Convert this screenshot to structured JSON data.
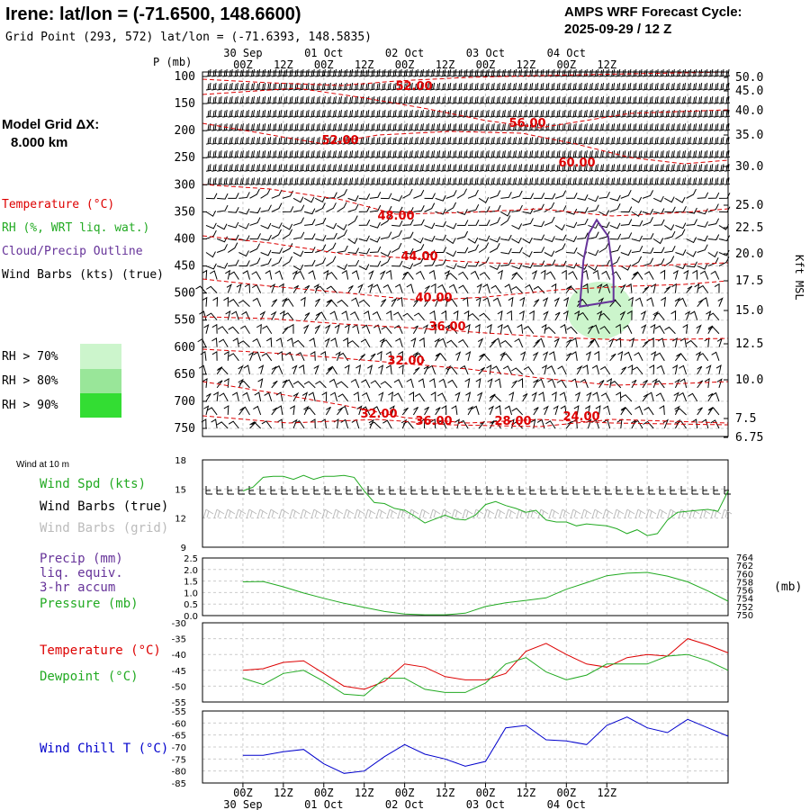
{
  "header": {
    "station_title": "Irene:  lat/lon = (-71.6500, 148.6600)",
    "grid_point": "Grid Point (293, 572) lat/lon = (-71.6393, 148.5835)",
    "forecast_label": "AMPS WRF Forecast Cycle:",
    "forecast_cycle": "2025-09-29 / 12  Z"
  },
  "model_grid": {
    "label": "Model Grid ΔX:",
    "value": "8.000 km"
  },
  "time_axis": {
    "hours": [
      "00Z",
      "12Z",
      "00Z",
      "12Z",
      "00Z",
      "12Z",
      "00Z",
      "12Z",
      "00Z",
      "12Z"
    ],
    "dates": [
      "30 Sep",
      "01 Oct",
      "02 Oct",
      "03 Oct",
      "04 Oct"
    ]
  },
  "legend": {
    "temperature": "Temperature (°C)",
    "rh": "RH (%, WRT liq. wat.)",
    "cloud": "Cloud/Precip Outline",
    "wind_barbs": "Wind Barbs (kts) (true)",
    "rh_70": "RH > 70%",
    "rh_80": "RH > 80%",
    "rh_90": "RH > 90%",
    "colors": {
      "temperature": "#dd0000",
      "rh": "#22aa22",
      "cloud": "#663399",
      "wind": "#000000",
      "rh70": "#ccf5cc",
      "rh80": "#99e699",
      "rh90": "#33dd33"
    }
  },
  "panel_labels": {
    "wind_at_10m": "Wind at 10 m",
    "wind_spd": "Wind Spd (kts)",
    "wind_barbs_true": "Wind Barbs (true)",
    "wind_barbs_grid": "Wind Barbs (grid)",
    "precip_1": "Precip (mm)",
    "precip_2": "liq. equiv.",
    "precip_3": "3-hr accum",
    "pressure": "Pressure (mb)",
    "pressure_unit": "(mb)",
    "temperature": "Temperature (°C)",
    "dewpoint": "Dewpoint (°C)",
    "wind_chill": "Wind Chill T (°C)",
    "kft_msl": "Kft MSL",
    "p_mb": "P (mb)"
  },
  "chart_data": [
    {
      "type": "time-height cross section",
      "yaxis_pressure_mb": [
        "100",
        "150",
        "200",
        "250",
        "300",
        "350",
        "400",
        "450",
        "500",
        "550",
        "600",
        "650",
        "700",
        "750"
      ],
      "yaxis_height_kft": [
        "50.0",
        "45.0",
        "40.0",
        "35.0",
        "30.0",
        "25.0",
        "22.5",
        "20.0",
        "17.5",
        "15.0",
        "12.5",
        "10.0",
        "7.5",
        "6.75"
      ],
      "temperature_contour_labels": [
        "52.00",
        "56.00",
        "52.00",
        "60.00",
        "48.00",
        "44.00",
        "40.00",
        "36.00",
        "32.00",
        "32.00",
        "36.00",
        "28.00",
        "24.00"
      ],
      "temperature_contour_values_negC": [
        -52,
        -56,
        -52,
        -60,
        -48,
        -44,
        -40,
        -36,
        -32,
        -32,
        -36,
        -28,
        -24
      ],
      "cloud_outline_hours": [
        100,
        110
      ],
      "rh70_region_hours": [
        100,
        112
      ]
    },
    {
      "type": "line",
      "title": "Wind Spd (kts)",
      "ylim": [
        9,
        18
      ],
      "yticks": [
        "18",
        "15",
        "12",
        "9"
      ],
      "x_hours": [
        0,
        3,
        6,
        9,
        12,
        15,
        18,
        21,
        24,
        27,
        30,
        33,
        36,
        39,
        42,
        45,
        48,
        51,
        54,
        57,
        60,
        63,
        66,
        69,
        72,
        75,
        78,
        81,
        84,
        87,
        90,
        93,
        96,
        99,
        102,
        105,
        108,
        111,
        114,
        117,
        120,
        123,
        126,
        129,
        132,
        135,
        138,
        141,
        144
      ],
      "values": [
        14.8,
        15.2,
        16.2,
        16.3,
        16.3,
        16.0,
        16.4,
        16.0,
        16.3,
        16.3,
        16.4,
        16.2,
        14.8,
        13.6,
        13.5,
        13.0,
        12.8,
        12.2,
        11.5,
        11.9,
        12.3,
        11.9,
        11.8,
        12.3,
        13.4,
        13.7,
        13.3,
        13.0,
        12.6,
        12.8,
        11.8,
        11.6,
        11.6,
        11.2,
        11.4,
        11.3,
        11.2,
        10.9,
        10.4,
        10.8,
        10.2,
        10.4,
        11.8,
        12.6,
        12.7,
        12.8,
        12.9,
        12.7,
        14.8
      ]
    },
    {
      "type": "line",
      "title": "Pressure (mb)",
      "left_yticks": [
        "2.5",
        "2.0",
        "1.5",
        "1.0",
        "0.5",
        "0.0"
      ],
      "right_yticks": [
        "764",
        "762",
        "760",
        "758",
        "756",
        "754",
        "752",
        "750"
      ],
      "right_ylim": [
        750,
        764
      ],
      "x_hours": [
        0,
        6,
        12,
        18,
        24,
        30,
        36,
        42,
        48,
        54,
        60,
        66,
        72,
        78,
        84,
        90,
        96,
        102,
        108,
        114,
        120,
        126,
        132,
        138,
        144
      ],
      "values": [
        758.2,
        758.3,
        757.0,
        755.5,
        754.2,
        753.0,
        752.0,
        751.0,
        750.4,
        750.2,
        750.2,
        750.6,
        752.2,
        753.1,
        753.7,
        754.3,
        756.4,
        758.0,
        759.7,
        760.3,
        760.5,
        759.6,
        758.2,
        756.0,
        753.5
      ]
    },
    {
      "type": "line",
      "title": "Temperature / Dewpoint (°C)",
      "ylim": [
        -55,
        -30
      ],
      "yticks": [
        "-30",
        "-35",
        "-40",
        "-45",
        "-50",
        "-55"
      ],
      "x_hours": [
        0,
        6,
        12,
        18,
        24,
        30,
        36,
        42,
        48,
        54,
        60,
        66,
        72,
        78,
        84,
        90,
        96,
        102,
        108,
        114,
        120,
        126,
        132,
        138,
        144
      ],
      "series": [
        {
          "name": "Temperature",
          "values": [
            -45,
            -44.5,
            -42.5,
            -42,
            -46,
            -50,
            -51,
            -48.5,
            -43,
            -44,
            -47,
            -48,
            -48,
            -46,
            -39,
            -36.5,
            -40,
            -43,
            -44,
            -41,
            -40,
            -40.5,
            -35,
            -37,
            -39.5
          ]
        },
        {
          "name": "Dewpoint",
          "values": [
            -47.5,
            -49.5,
            -46,
            -45,
            -48.5,
            -52.5,
            -53,
            -47.5,
            -47.5,
            -51,
            -52,
            -52,
            -49,
            -43,
            -41,
            -45.5,
            -48,
            -46.5,
            -43,
            -43,
            -43,
            -40.5,
            -40,
            -42,
            -45
          ]
        }
      ]
    },
    {
      "type": "line",
      "title": "Wind Chill T (°C)",
      "ylim": [
        -85,
        -55
      ],
      "yticks": [
        "-55",
        "-60",
        "-65",
        "-70",
        "-75",
        "-80",
        "-85"
      ],
      "x_hours": [
        0,
        6,
        12,
        18,
        24,
        30,
        36,
        42,
        48,
        54,
        60,
        66,
        72,
        78,
        84,
        90,
        96,
        102,
        108,
        114,
        120,
        126,
        132,
        138,
        144
      ],
      "values": [
        -73.5,
        -73.5,
        -72,
        -71,
        -77,
        -81,
        -80,
        -74,
        -69,
        -73,
        -75,
        -78,
        -76,
        -62,
        -61,
        -67,
        -67.5,
        -69,
        -61,
        -57.5,
        -62,
        -64,
        -58.5,
        -62,
        -65.5
      ]
    }
  ]
}
